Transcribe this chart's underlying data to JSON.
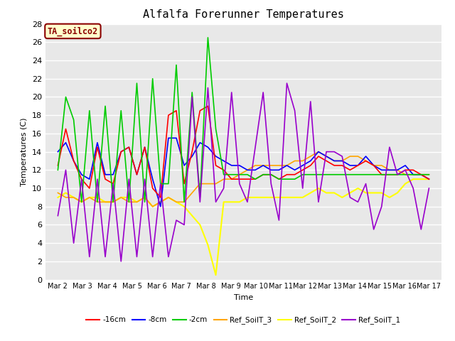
{
  "title": "Alfalfa Forerunner Temperatures",
  "xlabel": "Time",
  "ylabel": "Temperatures (C)",
  "ylim": [
    0,
    28
  ],
  "yticks": [
    0,
    2,
    4,
    6,
    8,
    10,
    12,
    14,
    16,
    18,
    20,
    22,
    24,
    26,
    28
  ],
  "xtick_labels": [
    "Mar 2",
    "Mar 3",
    "Mar 4",
    "Mar 5",
    "Mar 6",
    "Mar 7",
    "Mar 8",
    "Mar 9",
    "Mar 10",
    "Mar 11",
    "Mar 12",
    "Mar 13",
    "Mar 14",
    "Mar 15",
    "Mar 16",
    "Mar 17"
  ],
  "n_days": 16,
  "annotation_text": "TA_soilco2",
  "annotation_color": "#8B0000",
  "annotation_bg": "#FFFFCC",
  "annotation_border": "#8B0000",
  "plot_bg": "#E8E8E8",
  "grid_color": "white",
  "line_colors": {
    "neg16cm": "#FF0000",
    "neg8cm": "#0000FF",
    "neg2cm": "#00CC00",
    "ref3": "#FFA500",
    "ref2": "#FFFF00",
    "ref1": "#9900CC"
  },
  "line_labels": {
    "neg16cm": "-16cm",
    "neg8cm": "-8cm",
    "neg2cm": "-2cm",
    "ref3": "Ref_SoilT_3",
    "ref2": "Ref_SoilT_2",
    "ref1": "Ref_SoilT_1"
  },
  "neg16cm": [
    12.5,
    16.5,
    13.0,
    11.0,
    10.0,
    14.5,
    11.0,
    10.5,
    14.0,
    14.5,
    11.5,
    14.5,
    10.0,
    9.0,
    18.0,
    18.5,
    10.5,
    14.0,
    18.5,
    19.0,
    12.5,
    12.0,
    11.0,
    11.0,
    11.0,
    11.0,
    11.5,
    11.5,
    11.0,
    11.5,
    11.5,
    12.0,
    12.5,
    13.5,
    13.0,
    12.5,
    12.5,
    12.0,
    12.5,
    13.0,
    12.5,
    11.5,
    11.5,
    11.5,
    12.0,
    12.0,
    11.5,
    11.0
  ],
  "neg8cm": [
    14.0,
    15.0,
    13.0,
    11.5,
    11.0,
    15.0,
    11.5,
    11.5,
    14.0,
    14.5,
    11.5,
    14.5,
    11.0,
    8.0,
    15.5,
    15.5,
    12.5,
    13.5,
    15.0,
    14.5,
    13.5,
    13.0,
    12.5,
    12.5,
    12.0,
    12.0,
    12.5,
    12.0,
    12.0,
    12.5,
    12.0,
    12.5,
    13.0,
    14.0,
    13.5,
    13.0,
    13.0,
    12.5,
    12.5,
    13.5,
    12.5,
    12.0,
    12.0,
    12.0,
    12.5,
    11.5,
    11.5,
    11.0
  ],
  "neg2cm": [
    12.0,
    20.0,
    17.5,
    8.5,
    18.5,
    8.5,
    19.0,
    8.5,
    18.5,
    8.5,
    21.5,
    8.5,
    22.0,
    10.5,
    10.5,
    23.5,
    8.5,
    20.5,
    9.0,
    26.5,
    16.5,
    11.5,
    11.5,
    11.5,
    11.5,
    11.0,
    11.5,
    11.5,
    11.0,
    11.0,
    11.0,
    11.5,
    11.5,
    11.5,
    11.5,
    11.5,
    11.5,
    11.5,
    11.5,
    11.5,
    11.5,
    11.5,
    11.5,
    11.5,
    11.5,
    11.5,
    11.5,
    11.5
  ],
  "ref3": [
    9.5,
    9.0,
    9.0,
    8.5,
    9.0,
    8.5,
    8.5,
    8.5,
    9.0,
    8.5,
    8.5,
    9.0,
    8.0,
    8.5,
    9.0,
    8.5,
    8.5,
    9.5,
    10.5,
    10.5,
    10.5,
    11.0,
    11.0,
    11.5,
    12.0,
    12.5,
    12.5,
    12.5,
    12.5,
    12.5,
    13.0,
    13.0,
    13.5,
    14.0,
    13.5,
    13.0,
    13.0,
    13.5,
    13.5,
    13.0,
    12.5,
    12.5,
    12.0,
    12.0,
    11.5,
    11.5,
    11.5,
    11.5
  ],
  "ref2": [
    9.0,
    9.5,
    9.0,
    8.5,
    9.0,
    9.0,
    8.5,
    8.5,
    9.0,
    9.0,
    8.5,
    9.0,
    8.0,
    8.5,
    9.0,
    8.5,
    8.0,
    7.0,
    6.0,
    3.8,
    0.5,
    8.5,
    8.5,
    8.5,
    9.0,
    9.0,
    9.0,
    9.0,
    9.0,
    9.0,
    9.0,
    9.0,
    9.5,
    10.0,
    9.5,
    9.5,
    9.0,
    9.5,
    10.0,
    9.5,
    9.5,
    9.5,
    9.0,
    9.5,
    10.5,
    11.0,
    11.0,
    11.0
  ],
  "ref1": [
    7.0,
    12.0,
    4.0,
    11.0,
    2.5,
    11.0,
    2.5,
    10.5,
    2.0,
    11.0,
    2.5,
    11.0,
    2.5,
    10.5,
    2.5,
    6.5,
    6.0,
    20.0,
    8.5,
    21.0,
    8.5,
    10.0,
    20.5,
    10.5,
    8.5,
    14.5,
    20.5,
    10.5,
    6.5,
    21.5,
    18.5,
    10.0,
    19.5,
    8.5,
    14.0,
    14.0,
    13.5,
    9.0,
    8.5,
    10.5,
    5.5,
    8.0,
    14.5,
    11.5,
    12.0,
    10.0,
    5.5,
    10.0
  ]
}
